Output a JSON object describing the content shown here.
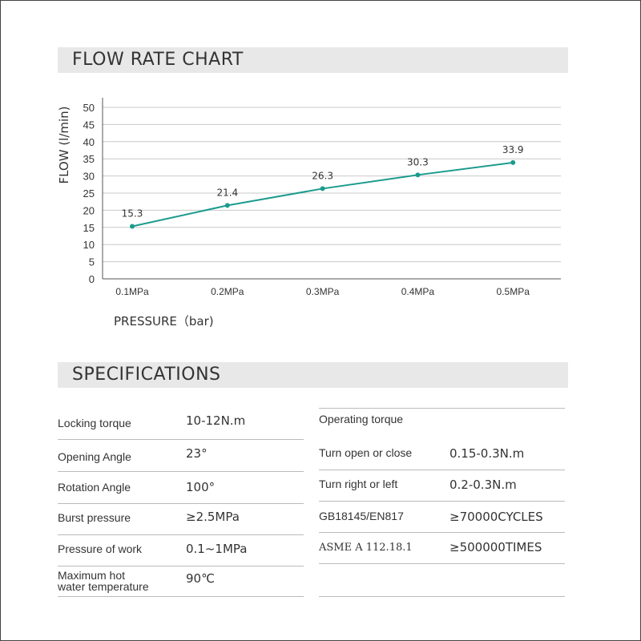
{
  "flow_section": {
    "title": "FLOW RATE CHART"
  },
  "spec_section": {
    "title": "SPECIFICATIONS"
  },
  "chart_data": {
    "type": "line",
    "title": "FLOW RATE CHART",
    "xlabel": "PRESSURE（bar)",
    "ylabel": "FLOW (l/min)",
    "categories": [
      "0.1MPa",
      "0.2MPa",
      "0.3MPa",
      "0.4MPa",
      "0.5MPa"
    ],
    "series": [
      {
        "values": [
          15.3,
          21.4,
          26.3,
          30.3,
          33.9
        ]
      }
    ],
    "data_labels": [
      "15.3",
      "21.4",
      "26.3",
      "30.3",
      "33.9"
    ],
    "y_ticks": [
      0,
      5,
      10,
      15,
      20,
      25,
      30,
      35,
      40,
      45,
      50
    ],
    "ylim": [
      0,
      50
    ],
    "grid": true,
    "line_color": "#1a9b8c"
  },
  "specs_left": [
    {
      "label": "Locking torque",
      "value": "10-12N.m"
    },
    {
      "label": "Opening Angle",
      "value": "23°"
    },
    {
      "label": "Rotation Angle",
      "value": "100°"
    },
    {
      "label": "Burst pressure",
      "value": "≥2.5MPa"
    },
    {
      "label": "Pressure of work",
      "value": "0.1~1MPa"
    },
    {
      "label": "Maximum hot",
      "label2": "water temperature",
      "value": "90℃"
    }
  ],
  "specs_right": {
    "header": "Operating torque",
    "rows": [
      {
        "label": "Turn open or close",
        "value": "0.15-0.3N.m"
      },
      {
        "label": "Turn right or left",
        "value": "0.2-0.3N.m"
      },
      {
        "label": "GB18145/EN817",
        "value": "≥70000CYCLES"
      },
      {
        "label": "ASME A 112.18.1",
        "value": "≥500000TIMES"
      }
    ]
  }
}
